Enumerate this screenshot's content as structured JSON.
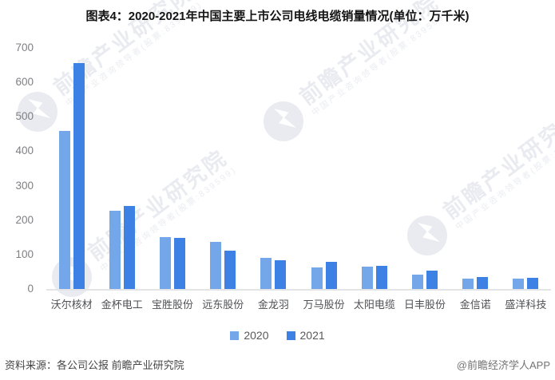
{
  "title": "图表4：2020-2021年中国主要上市公司电线电缆销量情况(单位：万千米)",
  "watermark": {
    "main": "前瞻产业研究院",
    "sub": "中国产业咨询领导者(股票:839599)"
  },
  "chart_data": {
    "type": "bar",
    "title": "图表4：2020-2021年中国主要上市公司电线电缆销量情况(单位：万千米)",
    "categories": [
      "沃尔核材",
      "金杯电工",
      "宝胜股份",
      "远东股份",
      "金龙羽",
      "万马股份",
      "太阳电缆",
      "日丰股份",
      "金信诺",
      "盛洋科技"
    ],
    "series": [
      {
        "name": "2020",
        "color": "#74A7EA",
        "values": [
          460,
          227,
          150,
          137,
          90,
          62,
          64,
          41,
          30,
          30
        ]
      },
      {
        "name": "2021",
        "color": "#3E81E4",
        "values": [
          655,
          241,
          148,
          112,
          83,
          80,
          68,
          53,
          34,
          33
        ]
      }
    ],
    "xlabel": "",
    "ylabel": "",
    "ylim": [
      0,
      700
    ],
    "y_ticks": [
      700,
      600,
      500,
      400,
      300,
      200,
      100,
      0
    ],
    "grid": false,
    "legend_position": "bottom"
  },
  "footer": {
    "source": "资料来源：各公司公报 前瞻产业研究院",
    "credit": "@前瞻经济学人APP"
  }
}
